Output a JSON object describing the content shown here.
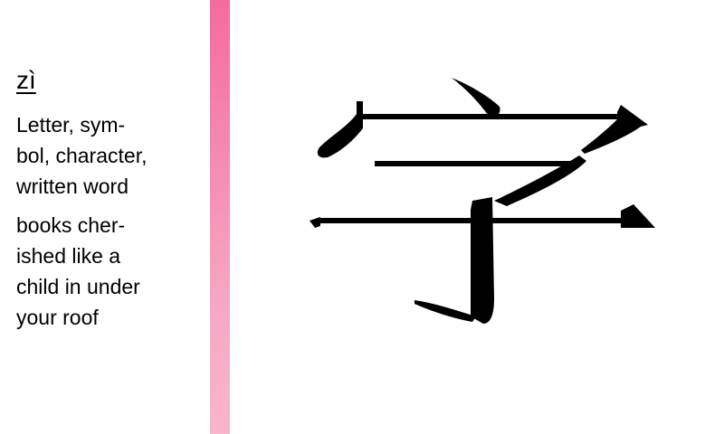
{
  "entry": {
    "pinyin": "zì",
    "definitions": [
      "Letter, sym-\nbol, character,\nwritten word",
      "books cher-\nished like a\nchild in under\nyour roof"
    ],
    "character": "字"
  },
  "colors": {
    "divider_top": "#f56b9c",
    "divider_bottom": "#f8b5cc",
    "text": "#000000"
  }
}
